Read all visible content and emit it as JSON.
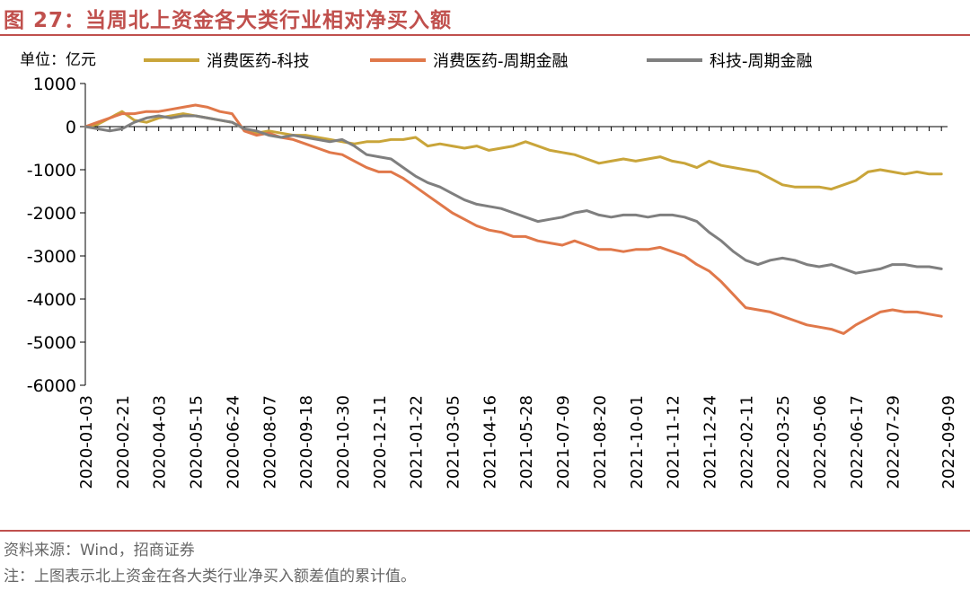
{
  "chart_data": {
    "type": "line",
    "title": "图 27：当周北上资金各大类行业相对净买入额",
    "unit_label": "单位：亿元",
    "ylim": [
      -6000,
      1000
    ],
    "yticks": [
      1000,
      0,
      -1000,
      -2000,
      -3000,
      -4000,
      -5000,
      -6000
    ],
    "ytick_labels": [
      "1000",
      "0",
      "-1000",
      "-2000",
      "-3000",
      "-4000",
      "-5000",
      "-6000"
    ],
    "xlim": [
      0,
      141
    ],
    "categories": [
      "2020-01-03",
      "2020-02-21",
      "2020-04-03",
      "2020-05-15",
      "2020-06-24",
      "2020-08-07",
      "2020-09-18",
      "2020-10-30",
      "2020-12-11",
      "2021-01-22",
      "2021-03-05",
      "2021-04-16",
      "2021-05-28",
      "2021-07-09",
      "2021-08-20",
      "2021-10-01",
      "2021-11-12",
      "2021-12-24",
      "2022-02-11",
      "2022-03-25",
      "2022-05-06",
      "2022-06-17",
      "2022-07-29",
      "2022-09-09"
    ],
    "category_positions": [
      0,
      6,
      12,
      18,
      24,
      30,
      36,
      42,
      48,
      54,
      60,
      66,
      72,
      78,
      84,
      90,
      96,
      102,
      108,
      114,
      120,
      126,
      132,
      141
    ],
    "series": [
      {
        "name": "消费医药-科技",
        "color": "#c9a53a",
        "points": [
          [
            0,
            0
          ],
          [
            2,
            50
          ],
          [
            4,
            200
          ],
          [
            6,
            350
          ],
          [
            8,
            150
          ],
          [
            10,
            100
          ],
          [
            12,
            200
          ],
          [
            14,
            250
          ],
          [
            16,
            300
          ],
          [
            18,
            250
          ],
          [
            20,
            200
          ],
          [
            22,
            150
          ],
          [
            24,
            100
          ],
          [
            26,
            -50
          ],
          [
            28,
            -150
          ],
          [
            30,
            -100
          ],
          [
            32,
            -150
          ],
          [
            34,
            -200
          ],
          [
            36,
            -200
          ],
          [
            38,
            -250
          ],
          [
            40,
            -300
          ],
          [
            42,
            -350
          ],
          [
            44,
            -400
          ],
          [
            46,
            -350
          ],
          [
            48,
            -350
          ],
          [
            50,
            -300
          ],
          [
            52,
            -300
          ],
          [
            54,
            -250
          ],
          [
            56,
            -450
          ],
          [
            58,
            -400
          ],
          [
            60,
            -450
          ],
          [
            62,
            -500
          ],
          [
            64,
            -450
          ],
          [
            66,
            -550
          ],
          [
            68,
            -500
          ],
          [
            70,
            -450
          ],
          [
            72,
            -350
          ],
          [
            74,
            -450
          ],
          [
            76,
            -550
          ],
          [
            78,
            -600
          ],
          [
            80,
            -650
          ],
          [
            82,
            -750
          ],
          [
            84,
            -850
          ],
          [
            86,
            -800
          ],
          [
            88,
            -750
          ],
          [
            90,
            -800
          ],
          [
            92,
            -750
          ],
          [
            94,
            -700
          ],
          [
            96,
            -800
          ],
          [
            98,
            -850
          ],
          [
            100,
            -950
          ],
          [
            102,
            -800
          ],
          [
            104,
            -900
          ],
          [
            106,
            -950
          ],
          [
            108,
            -1000
          ],
          [
            110,
            -1050
          ],
          [
            112,
            -1200
          ],
          [
            114,
            -1350
          ],
          [
            116,
            -1400
          ],
          [
            118,
            -1400
          ],
          [
            120,
            -1400
          ],
          [
            122,
            -1450
          ],
          [
            124,
            -1350
          ],
          [
            126,
            -1250
          ],
          [
            128,
            -1050
          ],
          [
            130,
            -1000
          ],
          [
            132,
            -1050
          ],
          [
            134,
            -1100
          ],
          [
            136,
            -1050
          ],
          [
            138,
            -1100
          ],
          [
            140,
            -1100
          ]
        ]
      },
      {
        "name": "消费医药-周期金融",
        "color": "#e0784a",
        "points": [
          [
            0,
            0
          ],
          [
            2,
            100
          ],
          [
            4,
            200
          ],
          [
            6,
            300
          ],
          [
            8,
            300
          ],
          [
            10,
            350
          ],
          [
            12,
            350
          ],
          [
            14,
            400
          ],
          [
            16,
            450
          ],
          [
            18,
            500
          ],
          [
            20,
            450
          ],
          [
            22,
            350
          ],
          [
            24,
            300
          ],
          [
            26,
            -100
          ],
          [
            28,
            -200
          ],
          [
            30,
            -150
          ],
          [
            32,
            -250
          ],
          [
            34,
            -300
          ],
          [
            36,
            -400
          ],
          [
            38,
            -500
          ],
          [
            40,
            -600
          ],
          [
            42,
            -650
          ],
          [
            44,
            -800
          ],
          [
            46,
            -950
          ],
          [
            48,
            -1050
          ],
          [
            50,
            -1050
          ],
          [
            52,
            -1200
          ],
          [
            54,
            -1400
          ],
          [
            56,
            -1600
          ],
          [
            58,
            -1800
          ],
          [
            60,
            -2000
          ],
          [
            62,
            -2150
          ],
          [
            64,
            -2300
          ],
          [
            66,
            -2400
          ],
          [
            68,
            -2450
          ],
          [
            70,
            -2550
          ],
          [
            72,
            -2550
          ],
          [
            74,
            -2650
          ],
          [
            76,
            -2700
          ],
          [
            78,
            -2750
          ],
          [
            80,
            -2650
          ],
          [
            82,
            -2750
          ],
          [
            84,
            -2850
          ],
          [
            86,
            -2850
          ],
          [
            88,
            -2900
          ],
          [
            90,
            -2850
          ],
          [
            92,
            -2850
          ],
          [
            94,
            -2800
          ],
          [
            96,
            -2900
          ],
          [
            98,
            -3000
          ],
          [
            100,
            -3200
          ],
          [
            102,
            -3350
          ],
          [
            104,
            -3600
          ],
          [
            106,
            -3900
          ],
          [
            108,
            -4200
          ],
          [
            110,
            -4250
          ],
          [
            112,
            -4300
          ],
          [
            114,
            -4400
          ],
          [
            116,
            -4500
          ],
          [
            118,
            -4600
          ],
          [
            120,
            -4650
          ],
          [
            122,
            -4700
          ],
          [
            124,
            -4800
          ],
          [
            126,
            -4600
          ],
          [
            128,
            -4450
          ],
          [
            130,
            -4300
          ],
          [
            132,
            -4250
          ],
          [
            134,
            -4300
          ],
          [
            136,
            -4300
          ],
          [
            138,
            -4350
          ],
          [
            140,
            -4400
          ]
        ]
      },
      {
        "name": "科技-周期金融",
        "color": "#7f7f7f",
        "points": [
          [
            0,
            0
          ],
          [
            2,
            -50
          ],
          [
            4,
            -100
          ],
          [
            6,
            -50
          ],
          [
            8,
            100
          ],
          [
            10,
            200
          ],
          [
            12,
            250
          ],
          [
            14,
            200
          ],
          [
            16,
            250
          ],
          [
            18,
            250
          ],
          [
            20,
            200
          ],
          [
            22,
            150
          ],
          [
            24,
            100
          ],
          [
            26,
            -50
          ],
          [
            28,
            -100
          ],
          [
            30,
            -200
          ],
          [
            32,
            -250
          ],
          [
            34,
            -200
          ],
          [
            36,
            -250
          ],
          [
            38,
            -300
          ],
          [
            40,
            -350
          ],
          [
            42,
            -300
          ],
          [
            44,
            -450
          ],
          [
            46,
            -650
          ],
          [
            48,
            -700
          ],
          [
            50,
            -750
          ],
          [
            52,
            -950
          ],
          [
            54,
            -1150
          ],
          [
            56,
            -1300
          ],
          [
            58,
            -1400
          ],
          [
            60,
            -1550
          ],
          [
            62,
            -1700
          ],
          [
            64,
            -1800
          ],
          [
            66,
            -1850
          ],
          [
            68,
            -1900
          ],
          [
            70,
            -2000
          ],
          [
            72,
            -2100
          ],
          [
            74,
            -2200
          ],
          [
            76,
            -2150
          ],
          [
            78,
            -2100
          ],
          [
            80,
            -2000
          ],
          [
            82,
            -1950
          ],
          [
            84,
            -2050
          ],
          [
            86,
            -2100
          ],
          [
            88,
            -2050
          ],
          [
            90,
            -2050
          ],
          [
            92,
            -2100
          ],
          [
            94,
            -2050
          ],
          [
            96,
            -2050
          ],
          [
            98,
            -2100
          ],
          [
            100,
            -2200
          ],
          [
            102,
            -2450
          ],
          [
            104,
            -2650
          ],
          [
            106,
            -2900
          ],
          [
            108,
            -3100
          ],
          [
            110,
            -3200
          ],
          [
            112,
            -3100
          ],
          [
            114,
            -3050
          ],
          [
            116,
            -3100
          ],
          [
            118,
            -3200
          ],
          [
            120,
            -3250
          ],
          [
            122,
            -3200
          ],
          [
            124,
            -3300
          ],
          [
            126,
            -3400
          ],
          [
            128,
            -3350
          ],
          [
            130,
            -3300
          ],
          [
            132,
            -3200
          ],
          [
            134,
            -3200
          ],
          [
            136,
            -3250
          ],
          [
            138,
            -3250
          ],
          [
            140,
            -3300
          ]
        ]
      }
    ]
  },
  "source": "资料来源：Wind，招商证券",
  "note": "注：上图表示北上资金在各大类行业净买入额差值的累计值。"
}
